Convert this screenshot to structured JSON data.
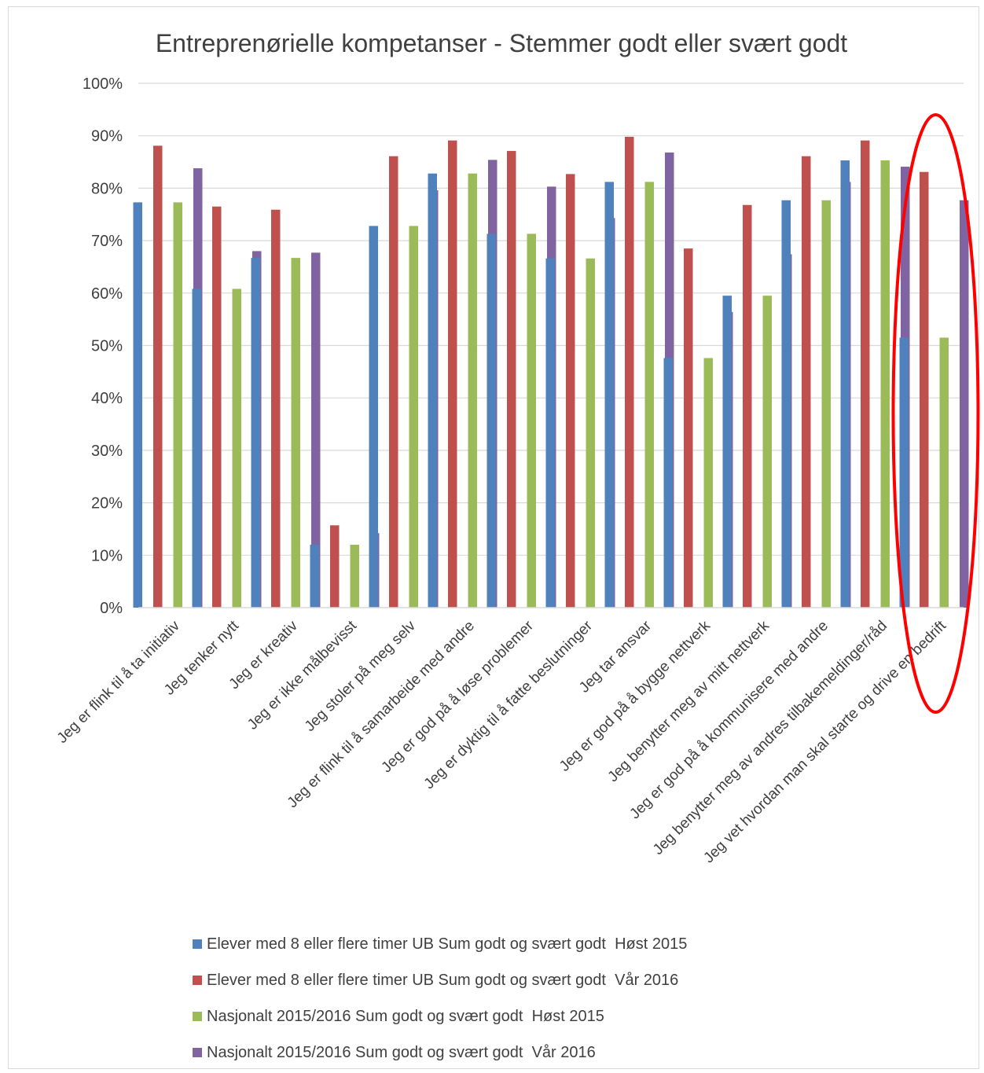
{
  "chart_data": {
    "type": "bar",
    "title": "Entreprenørielle kompetanser - Stemmer godt eller svært godt",
    "xlabel": "",
    "ylabel": "",
    "ylim": [
      0,
      100
    ],
    "yticks": [
      "0%",
      "10%",
      "20%",
      "30%",
      "40%",
      "50%",
      "60%",
      "70%",
      "80%",
      "90%",
      "100%"
    ],
    "grid": true,
    "legend_position": "bottom",
    "categories": [
      "Jeg er flink til å ta initiativ",
      "Jeg tenker nytt",
      "Jeg er kreativ",
      "Jeg er ikke målbevisst",
      "Jeg stoler på meg selv",
      "Jeg er flink til å samarbeide med andre",
      "Jeg er god på å løse problemer",
      "Jeg er dyktig til å fatte beslutninger",
      "Jeg tar ansvar",
      "Jeg er god på å bygge nettverk",
      "Jeg benytter meg av mitt nettverk",
      "Jeg er god på å kommunisere med andre",
      "Jeg benytter meg av andres tilbakemeldinger/råd",
      "Jeg vet hvordan man skal starte og drive en bedrift"
    ],
    "series": [
      {
        "name": "Elever med 8 eller flere timer UB Sum godt og svært godt  Høst 2015",
        "color": "#4f81bd",
        "values": [
          77.3,
          60.8,
          66.7,
          12.0,
          72.8,
          82.8,
          71.3,
          66.6,
          81.2,
          47.6,
          59.5,
          77.7,
          85.3,
          51.5
        ]
      },
      {
        "name": "Elever med 8 eller flere timer UB Sum godt og svært godt  Vår 2016",
        "color": "#c0504d",
        "values": [
          88.1,
          76.5,
          75.9,
          15.7,
          86.1,
          89.1,
          87.1,
          82.7,
          89.8,
          68.5,
          76.8,
          86.1,
          89.1,
          83.1
        ]
      },
      {
        "name": "Nasjonalt 2015/2016 Sum godt og svært godt  Høst 2015",
        "color": "#9bbb59",
        "values": [
          77.3,
          60.8,
          66.7,
          12.0,
          72.8,
          82.8,
          71.3,
          66.6,
          81.2,
          47.6,
          59.5,
          77.7,
          85.3,
          51.5
        ]
      },
      {
        "name": "Nasjonalt 2015/2016 Sum godt og svært godt  Vår 2016",
        "color": "#8064a2",
        "values": [
          83.8,
          68.0,
          67.7,
          14.2,
          79.6,
          85.4,
          80.3,
          74.3,
          86.8,
          56.4,
          67.4,
          81.2,
          84.1,
          77.7
        ]
      }
    ],
    "annotations": [
      {
        "shape": "ellipse",
        "color": "#ff0000",
        "target_category": "Jeg vet hvordan man skal starte og drive en bedrift"
      }
    ]
  }
}
